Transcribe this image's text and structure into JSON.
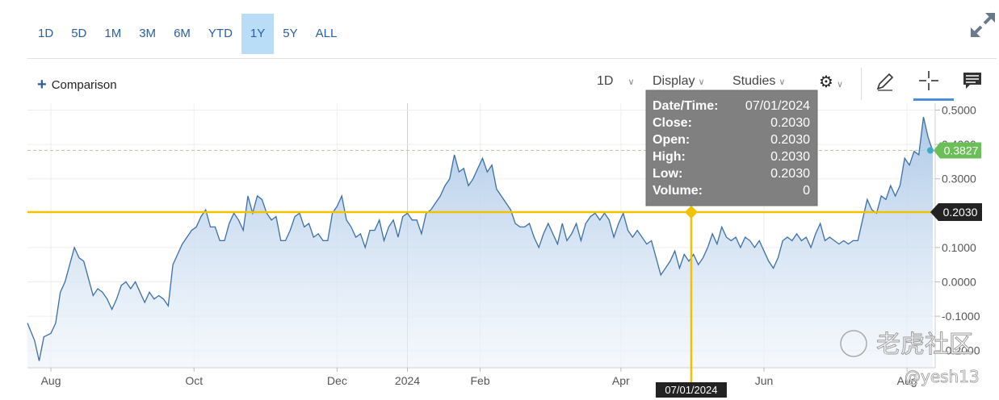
{
  "range_buttons": [
    "1D",
    "5D",
    "1M",
    "3M",
    "6M",
    "YTD",
    "1Y",
    "5Y",
    "ALL"
  ],
  "active_range": "1Y",
  "toolbar": {
    "comparison_label": "Comparison",
    "interval_label": "1D",
    "display_label": "Display",
    "studies_label": "Studies"
  },
  "tooltip": {
    "datetime_label": "Date/Time:",
    "datetime_value": "07/01/2024",
    "close_label": "Close:",
    "close_value": "0.2030",
    "open_label": "Open:",
    "open_value": "0.2030",
    "high_label": "High:",
    "high_value": "0.2030",
    "low_label": "Low:",
    "low_value": "0.2030",
    "volume_label": "Volume:",
    "volume_value": "0"
  },
  "crosshair": {
    "y_label": "0.2030",
    "x_label": "07/01/2024",
    "x": 276,
    "y": 0.203
  },
  "last_price": {
    "label": "0.3827",
    "value": 0.3827
  },
  "watermark": {
    "text": "老虎社区",
    "user": "@yesh13"
  },
  "colors": {
    "accent": "#2c5f9e",
    "active_range_bg": "#b9dcf7",
    "line": "#3a6fa8",
    "crosshair": "#f2c200",
    "last_price": "#6bbf59",
    "tooltip_bg": "#808080"
  },
  "chart_data": {
    "type": "area",
    "ylim": [
      -0.25,
      0.52
    ],
    "y_ticks": [
      0.5,
      0.4,
      0.3,
      0.1,
      0.0,
      -0.1,
      -0.2
    ],
    "y_tick_labels": [
      "0.5000",
      "0.4000",
      "0.3000",
      "0.1000",
      "0.0000",
      "-0.1000",
      "-0.2000"
    ],
    "x_ticks": [
      {
        "label": "Aug",
        "x": 3
      },
      {
        "label": "Oct",
        "x": 64
      },
      {
        "label": "Dec",
        "x": 125
      },
      {
        "label": "2024",
        "x": 155
      },
      {
        "label": "Feb",
        "x": 186
      },
      {
        "label": "Apr",
        "x": 246
      },
      {
        "label": "Jun",
        "x": 307
      },
      {
        "label": "Aug",
        "x": 368
      }
    ],
    "x_range": [
      -7,
      380
    ],
    "series": [
      {
        "points": [
          [
            -7,
            -0.12
          ],
          [
            -4,
            -0.17
          ],
          [
            -2,
            -0.23
          ],
          [
            0,
            -0.16
          ],
          [
            3,
            -0.15
          ],
          [
            5,
            -0.12
          ],
          [
            7,
            -0.03
          ],
          [
            9,
            0.0
          ],
          [
            11,
            0.05
          ],
          [
            13,
            0.1
          ],
          [
            15,
            0.07
          ],
          [
            17,
            0.06
          ],
          [
            19,
            0.01
          ],
          [
            21,
            -0.04
          ],
          [
            23,
            -0.02
          ],
          [
            25,
            -0.03
          ],
          [
            27,
            -0.05
          ],
          [
            29,
            -0.08
          ],
          [
            31,
            -0.05
          ],
          [
            33,
            -0.01
          ],
          [
            35,
            0.0
          ],
          [
            37,
            -0.02
          ],
          [
            39,
            0.0
          ],
          [
            41,
            -0.03
          ],
          [
            43,
            -0.06
          ],
          [
            45,
            -0.03
          ],
          [
            47,
            -0.05
          ],
          [
            49,
            -0.04
          ],
          [
            51,
            -0.05
          ],
          [
            53,
            -0.07
          ],
          [
            55,
            0.05
          ],
          [
            57,
            0.08
          ],
          [
            59,
            0.11
          ],
          [
            61,
            0.13
          ],
          [
            63,
            0.15
          ],
          [
            65,
            0.16
          ],
          [
            67,
            0.19
          ],
          [
            69,
            0.21
          ],
          [
            71,
            0.16
          ],
          [
            73,
            0.16
          ],
          [
            75,
            0.12
          ],
          [
            77,
            0.12
          ],
          [
            79,
            0.17
          ],
          [
            81,
            0.2
          ],
          [
            83,
            0.18
          ],
          [
            85,
            0.15
          ],
          [
            87,
            0.25
          ],
          [
            89,
            0.2
          ],
          [
            91,
            0.25
          ],
          [
            93,
            0.24
          ],
          [
            95,
            0.2
          ],
          [
            97,
            0.18
          ],
          [
            99,
            0.19
          ],
          [
            101,
            0.12
          ],
          [
            103,
            0.12
          ],
          [
            105,
            0.15
          ],
          [
            107,
            0.19
          ],
          [
            109,
            0.2
          ],
          [
            111,
            0.16
          ],
          [
            113,
            0.17
          ],
          [
            115,
            0.13
          ],
          [
            117,
            0.14
          ],
          [
            119,
            0.12
          ],
          [
            121,
            0.12
          ],
          [
            123,
            0.2
          ],
          [
            125,
            0.22
          ],
          [
            127,
            0.25
          ],
          [
            129,
            0.18
          ],
          [
            131,
            0.16
          ],
          [
            133,
            0.13
          ],
          [
            135,
            0.14
          ],
          [
            137,
            0.1
          ],
          [
            139,
            0.15
          ],
          [
            141,
            0.15
          ],
          [
            143,
            0.18
          ],
          [
            145,
            0.12
          ],
          [
            147,
            0.16
          ],
          [
            149,
            0.18
          ],
          [
            151,
            0.13
          ],
          [
            153,
            0.19
          ],
          [
            155,
            0.2
          ],
          [
            157,
            0.18
          ],
          [
            159,
            0.18
          ],
          [
            161,
            0.14
          ],
          [
            163,
            0.2
          ],
          [
            165,
            0.21
          ],
          [
            167,
            0.23
          ],
          [
            169,
            0.25
          ],
          [
            171,
            0.28
          ],
          [
            173,
            0.3
          ],
          [
            175,
            0.37
          ],
          [
            177,
            0.32
          ],
          [
            179,
            0.33
          ],
          [
            181,
            0.28
          ],
          [
            183,
            0.3
          ],
          [
            185,
            0.33
          ],
          [
            187,
            0.36
          ],
          [
            189,
            0.32
          ],
          [
            191,
            0.34
          ],
          [
            193,
            0.27
          ],
          [
            195,
            0.25
          ],
          [
            197,
            0.23
          ],
          [
            199,
            0.21
          ],
          [
            201,
            0.17
          ],
          [
            203,
            0.16
          ],
          [
            205,
            0.16
          ],
          [
            207,
            0.17
          ],
          [
            209,
            0.13
          ],
          [
            211,
            0.1
          ],
          [
            213,
            0.14
          ],
          [
            215,
            0.17
          ],
          [
            217,
            0.14
          ],
          [
            219,
            0.11
          ],
          [
            221,
            0.17
          ],
          [
            223,
            0.12
          ],
          [
            225,
            0.14
          ],
          [
            227,
            0.17
          ],
          [
            229,
            0.12
          ],
          [
            231,
            0.17
          ],
          [
            233,
            0.19
          ],
          [
            235,
            0.2
          ],
          [
            237,
            0.18
          ],
          [
            239,
            0.2
          ],
          [
            241,
            0.18
          ],
          [
            243,
            0.13
          ],
          [
            245,
            0.17
          ],
          [
            247,
            0.2
          ],
          [
            249,
            0.15
          ],
          [
            251,
            0.13
          ],
          [
            253,
            0.15
          ],
          [
            255,
            0.13
          ],
          [
            257,
            0.11
          ],
          [
            259,
            0.12
          ],
          [
            261,
            0.07
          ],
          [
            263,
            0.02
          ],
          [
            265,
            0.04
          ],
          [
            267,
            0.06
          ],
          [
            269,
            0.09
          ],
          [
            271,
            0.04
          ],
          [
            273,
            0.08
          ],
          [
            275,
            0.06
          ],
          [
            277,
            0.08
          ],
          [
            279,
            0.05
          ],
          [
            281,
            0.07
          ],
          [
            283,
            0.1
          ],
          [
            285,
            0.14
          ],
          [
            287,
            0.11
          ],
          [
            289,
            0.16
          ],
          [
            291,
            0.13
          ],
          [
            293,
            0.12
          ],
          [
            295,
            0.13
          ],
          [
            297,
            0.1
          ],
          [
            299,
            0.13
          ],
          [
            301,
            0.12
          ],
          [
            303,
            0.1
          ],
          [
            305,
            0.12
          ],
          [
            307,
            0.09
          ],
          [
            309,
            0.06
          ],
          [
            311,
            0.04
          ],
          [
            313,
            0.07
          ],
          [
            315,
            0.12
          ],
          [
            317,
            0.13
          ],
          [
            319,
            0.12
          ],
          [
            321,
            0.14
          ],
          [
            323,
            0.12
          ],
          [
            325,
            0.13
          ],
          [
            327,
            0.1
          ],
          [
            329,
            0.14
          ],
          [
            331,
            0.17
          ],
          [
            333,
            0.12
          ],
          [
            335,
            0.13
          ],
          [
            337,
            0.12
          ],
          [
            339,
            0.11
          ],
          [
            341,
            0.12
          ],
          [
            343,
            0.11
          ],
          [
            345,
            0.12
          ],
          [
            347,
            0.12
          ],
          [
            349,
            0.18
          ],
          [
            351,
            0.24
          ],
          [
            353,
            0.21
          ],
          [
            355,
            0.2
          ],
          [
            357,
            0.25
          ],
          [
            359,
            0.24
          ],
          [
            361,
            0.28
          ],
          [
            363,
            0.25
          ],
          [
            365,
            0.28
          ],
          [
            367,
            0.36
          ],
          [
            369,
            0.34
          ],
          [
            371,
            0.38
          ],
          [
            373,
            0.37
          ],
          [
            375,
            0.48
          ],
          [
            377,
            0.42
          ],
          [
            379,
            0.38
          ]
        ]
      }
    ]
  }
}
